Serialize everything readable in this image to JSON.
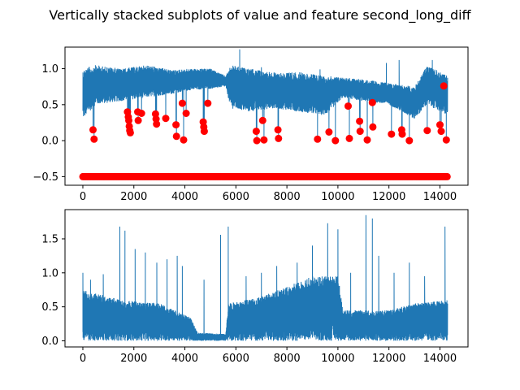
{
  "chart_data": {
    "title": "Vertically stacked subplots of value and feature second_long_diff",
    "subplots": [
      {
        "type": "line",
        "xlim": [
          -700,
          15100
        ],
        "ylim": [
          -0.62,
          1.3
        ],
        "x_ticks": [
          0,
          2000,
          4000,
          6000,
          8000,
          10000,
          12000,
          14000
        ],
        "y_ticks": [
          -0.5,
          0.0,
          0.5,
          1.0
        ],
        "y_tick_labels": [
          "−0.5",
          "0.0",
          "0.5",
          "1.0"
        ],
        "series": [
          {
            "kind": "line",
            "color": "#1f77b4",
            "envelope": [
              {
                "x": 0,
                "low": 0.3,
                "high": 1.0
              },
              {
                "x": 500,
                "low": 0.5,
                "high": 1.05
              },
              {
                "x": 1500,
                "low": 0.55,
                "high": 1.0
              },
              {
                "x": 2500,
                "low": 0.6,
                "high": 1.05
              },
              {
                "x": 3500,
                "low": 0.65,
                "high": 0.98
              },
              {
                "x": 4200,
                "low": 0.7,
                "high": 1.0
              },
              {
                "x": 5000,
                "low": 0.72,
                "high": 1.0
              },
              {
                "x": 5600,
                "low": 0.75,
                "high": 0.9
              },
              {
                "x": 5800,
                "low": 0.45,
                "high": 1.05
              },
              {
                "x": 6500,
                "low": 0.4,
                "high": 1.0
              },
              {
                "x": 7500,
                "low": 0.45,
                "high": 0.95
              },
              {
                "x": 8500,
                "low": 0.4,
                "high": 0.95
              },
              {
                "x": 9500,
                "low": 0.35,
                "high": 0.9
              },
              {
                "x": 10200,
                "low": 0.6,
                "high": 0.88
              },
              {
                "x": 11000,
                "low": 0.55,
                "high": 0.85
              },
              {
                "x": 12000,
                "low": 0.5,
                "high": 0.8
              },
              {
                "x": 13000,
                "low": 0.3,
                "high": 0.75
              },
              {
                "x": 13500,
                "low": 0.5,
                "high": 1.05
              },
              {
                "x": 14300,
                "low": 0.35,
                "high": 0.9
              }
            ],
            "spikes": [
              {
                "x": 400,
                "y": 0.15
              },
              {
                "x": 440,
                "y": 0.02
              },
              {
                "x": 1750,
                "y": 0.4
              },
              {
                "x": 1780,
                "y": 0.33
              },
              {
                "x": 1800,
                "y": 0.28
              },
              {
                "x": 1820,
                "y": 0.2
              },
              {
                "x": 1840,
                "y": 0.14
              },
              {
                "x": 1860,
                "y": 0.11
              },
              {
                "x": 2150,
                "y": 0.4
              },
              {
                "x": 2170,
                "y": 0.28
              },
              {
                "x": 2300,
                "y": 0.38
              },
              {
                "x": 2850,
                "y": 0.37
              },
              {
                "x": 2870,
                "y": 0.3
              },
              {
                "x": 2890,
                "y": 0.23
              },
              {
                "x": 3250,
                "y": 0.31
              },
              {
                "x": 3650,
                "y": 0.22
              },
              {
                "x": 3670,
                "y": 0.06
              },
              {
                "x": 3900,
                "y": 0.52
              },
              {
                "x": 3950,
                "y": 0.01
              },
              {
                "x": 4050,
                "y": 0.38
              },
              {
                "x": 4720,
                "y": 0.26
              },
              {
                "x": 4740,
                "y": 0.19
              },
              {
                "x": 4760,
                "y": 0.13
              },
              {
                "x": 4900,
                "y": 0.52
              },
              {
                "x": 6800,
                "y": 0.13
              },
              {
                "x": 6820,
                "y": 0.0
              },
              {
                "x": 7050,
                "y": 0.28
              },
              {
                "x": 7100,
                "y": 0.01
              },
              {
                "x": 7650,
                "y": 0.15
              },
              {
                "x": 7670,
                "y": 0.03
              },
              {
                "x": 9200,
                "y": 0.02
              },
              {
                "x": 9650,
                "y": 0.12
              },
              {
                "x": 9900,
                "y": 0.0
              },
              {
                "x": 10400,
                "y": 0.48
              },
              {
                "x": 10450,
                "y": 0.03
              },
              {
                "x": 10850,
                "y": 0.27
              },
              {
                "x": 10870,
                "y": 0.13
              },
              {
                "x": 11150,
                "y": 0.01
              },
              {
                "x": 11350,
                "y": 0.53
              },
              {
                "x": 11370,
                "y": 0.19
              },
              {
                "x": 12100,
                "y": 0.09
              },
              {
                "x": 12500,
                "y": 0.15
              },
              {
                "x": 12520,
                "y": 0.09
              },
              {
                "x": 12800,
                "y": 0.0
              },
              {
                "x": 13500,
                "y": 0.14
              },
              {
                "x": 14000,
                "y": 0.22
              },
              {
                "x": 14050,
                "y": 0.13
              },
              {
                "x": 14150,
                "y": 0.76
              },
              {
                "x": 14250,
                "y": 0.01
              }
            ],
            "peaks": [
              {
                "x": 6150,
                "y": 1.27
              },
              {
                "x": 7000,
                "y": 1.02
              },
              {
                "x": 9300,
                "y": 0.99
              },
              {
                "x": 11900,
                "y": 1.08
              },
              {
                "x": 12400,
                "y": 1.12
              },
              {
                "x": 13700,
                "y": 1.12
              }
            ]
          },
          {
            "kind": "scatter",
            "color": "#ff0000",
            "baseline_y": -0.5,
            "baseline_x_range": [
              0,
              14300
            ],
            "points": [
              {
                "x": 400,
                "y": 0.15
              },
              {
                "x": 440,
                "y": 0.02
              },
              {
                "x": 1750,
                "y": 0.4
              },
              {
                "x": 1780,
                "y": 0.33
              },
              {
                "x": 1800,
                "y": 0.28
              },
              {
                "x": 1820,
                "y": 0.2
              },
              {
                "x": 1840,
                "y": 0.14
              },
              {
                "x": 1860,
                "y": 0.11
              },
              {
                "x": 2150,
                "y": 0.4
              },
              {
                "x": 2170,
                "y": 0.28
              },
              {
                "x": 2300,
                "y": 0.38
              },
              {
                "x": 2850,
                "y": 0.37
              },
              {
                "x": 2870,
                "y": 0.3
              },
              {
                "x": 2890,
                "y": 0.23
              },
              {
                "x": 3250,
                "y": 0.31
              },
              {
                "x": 3650,
                "y": 0.22
              },
              {
                "x": 3670,
                "y": 0.06
              },
              {
                "x": 3900,
                "y": 0.52
              },
              {
                "x": 3950,
                "y": 0.01
              },
              {
                "x": 4050,
                "y": 0.38
              },
              {
                "x": 4720,
                "y": 0.26
              },
              {
                "x": 4740,
                "y": 0.19
              },
              {
                "x": 4760,
                "y": 0.13
              },
              {
                "x": 4900,
                "y": 0.52
              },
              {
                "x": 6800,
                "y": 0.13
              },
              {
                "x": 6820,
                "y": 0.0
              },
              {
                "x": 7050,
                "y": 0.28
              },
              {
                "x": 7100,
                "y": 0.01
              },
              {
                "x": 7650,
                "y": 0.15
              },
              {
                "x": 7670,
                "y": 0.03
              },
              {
                "x": 9200,
                "y": 0.02
              },
              {
                "x": 9650,
                "y": 0.12
              },
              {
                "x": 9900,
                "y": 0.0
              },
              {
                "x": 10400,
                "y": 0.48
              },
              {
                "x": 10450,
                "y": 0.03
              },
              {
                "x": 10850,
                "y": 0.27
              },
              {
                "x": 10870,
                "y": 0.13
              },
              {
                "x": 11150,
                "y": 0.01
              },
              {
                "x": 11350,
                "y": 0.53
              },
              {
                "x": 11370,
                "y": 0.19
              },
              {
                "x": 12100,
                "y": 0.09
              },
              {
                "x": 12500,
                "y": 0.15
              },
              {
                "x": 12520,
                "y": 0.09
              },
              {
                "x": 12800,
                "y": 0.0
              },
              {
                "x": 13500,
                "y": 0.14
              },
              {
                "x": 14000,
                "y": 0.22
              },
              {
                "x": 14050,
                "y": 0.13
              },
              {
                "x": 14150,
                "y": 0.76
              },
              {
                "x": 14250,
                "y": 0.01
              }
            ]
          }
        ]
      },
      {
        "type": "line",
        "xlim": [
          -700,
          15100
        ],
        "ylim": [
          -0.09,
          1.93
        ],
        "x_ticks": [
          0,
          2000,
          4000,
          6000,
          8000,
          10000,
          12000,
          14000
        ],
        "y_ticks": [
          0.0,
          0.5,
          1.0,
          1.5
        ],
        "y_tick_labels": [
          "0.0",
          "0.5",
          "1.0",
          "1.5"
        ],
        "series": [
          {
            "kind": "line",
            "color": "#1f77b4",
            "envelope": [
              {
                "x": 0,
                "low": 0.0,
                "high": 0.75
              },
              {
                "x": 1500,
                "low": 0.0,
                "high": 0.6
              },
              {
                "x": 3000,
                "low": 0.0,
                "high": 0.55
              },
              {
                "x": 4200,
                "low": 0.0,
                "high": 0.35
              },
              {
                "x": 4500,
                "low": 0.0,
                "high": 0.12
              },
              {
                "x": 5600,
                "low": 0.0,
                "high": 0.1
              },
              {
                "x": 5700,
                "low": 0.0,
                "high": 0.55
              },
              {
                "x": 7000,
                "low": 0.0,
                "high": 0.65
              },
              {
                "x": 8000,
                "low": 0.0,
                "high": 0.8
              },
              {
                "x": 9000,
                "low": 0.0,
                "high": 0.95
              },
              {
                "x": 10000,
                "low": 0.0,
                "high": 0.95
              },
              {
                "x": 10200,
                "low": 0.0,
                "high": 0.45
              },
              {
                "x": 12000,
                "low": 0.0,
                "high": 0.45
              },
              {
                "x": 13000,
                "low": 0.0,
                "high": 0.55
              },
              {
                "x": 14300,
                "low": 0.0,
                "high": 0.6
              }
            ],
            "peaks": [
              {
                "x": 0,
                "y": 1.0
              },
              {
                "x": 300,
                "y": 0.9
              },
              {
                "x": 800,
                "y": 0.98
              },
              {
                "x": 1450,
                "y": 1.68
              },
              {
                "x": 1650,
                "y": 1.62
              },
              {
                "x": 2050,
                "y": 1.35
              },
              {
                "x": 2450,
                "y": 1.3
              },
              {
                "x": 2900,
                "y": 1.15
              },
              {
                "x": 3300,
                "y": 1.2
              },
              {
                "x": 3700,
                "y": 1.25
              },
              {
                "x": 3900,
                "y": 1.1
              },
              {
                "x": 4750,
                "y": 0.9
              },
              {
                "x": 5400,
                "y": 1.56
              },
              {
                "x": 5700,
                "y": 1.68
              },
              {
                "x": 6400,
                "y": 0.95
              },
              {
                "x": 7000,
                "y": 1.0
              },
              {
                "x": 7600,
                "y": 1.1
              },
              {
                "x": 8400,
                "y": 1.15
              },
              {
                "x": 9000,
                "y": 1.4
              },
              {
                "x": 9600,
                "y": 1.73
              },
              {
                "x": 10000,
                "y": 1.64
              },
              {
                "x": 10500,
                "y": 1.0
              },
              {
                "x": 11100,
                "y": 1.85
              },
              {
                "x": 11350,
                "y": 1.8
              },
              {
                "x": 11600,
                "y": 1.25
              },
              {
                "x": 12200,
                "y": 1.0
              },
              {
                "x": 12800,
                "y": 1.15
              },
              {
                "x": 13400,
                "y": 0.95
              },
              {
                "x": 14200,
                "y": 1.68
              }
            ]
          }
        ]
      }
    ]
  }
}
